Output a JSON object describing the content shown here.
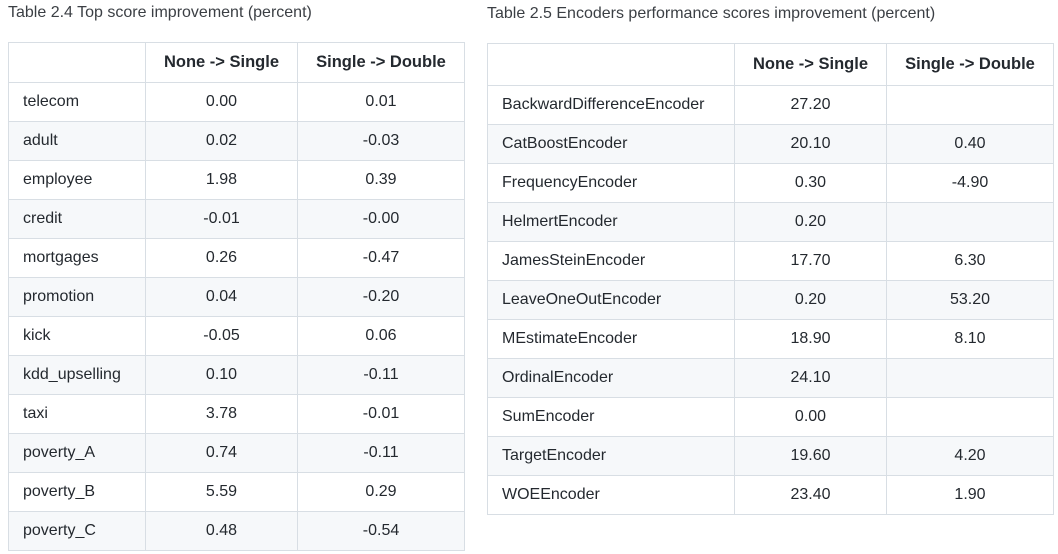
{
  "table1": {
    "caption": "Table 2.4 Top score improvement (percent)",
    "headers": [
      "",
      "None -> Single",
      "Single -> Double"
    ],
    "rows": [
      [
        "telecom",
        "0.00",
        "0.01"
      ],
      [
        "adult",
        "0.02",
        "-0.03"
      ],
      [
        "employee",
        "1.98",
        "0.39"
      ],
      [
        "credit",
        "-0.01",
        "-0.00"
      ],
      [
        "mortgages",
        "0.26",
        "-0.47"
      ],
      [
        "promotion",
        "0.04",
        "-0.20"
      ],
      [
        "kick",
        "-0.05",
        "0.06"
      ],
      [
        "kdd_upselling",
        "0.10",
        "-0.11"
      ],
      [
        "taxi",
        "3.78",
        "-0.01"
      ],
      [
        "poverty_A",
        "0.74",
        "-0.11"
      ],
      [
        "poverty_B",
        "5.59",
        "0.29"
      ],
      [
        "poverty_C",
        "0.48",
        "-0.54"
      ]
    ]
  },
  "table2": {
    "caption": "Table 2.5 Encoders performance scores improvement (percent)",
    "headers": [
      "",
      "None -> Single",
      "Single -> Double"
    ],
    "rows": [
      [
        "BackwardDifferenceEncoder",
        "27.20",
        ""
      ],
      [
        "CatBoostEncoder",
        "20.10",
        "0.40"
      ],
      [
        "FrequencyEncoder",
        "0.30",
        "-4.90"
      ],
      [
        "HelmertEncoder",
        "0.20",
        ""
      ],
      [
        "JamesSteinEncoder",
        "17.70",
        "6.30"
      ],
      [
        "LeaveOneOutEncoder",
        "0.20",
        "53.20"
      ],
      [
        "MEstimateEncoder",
        "18.90",
        "8.10"
      ],
      [
        "OrdinalEncoder",
        "24.10",
        ""
      ],
      [
        "SumEncoder",
        "0.00",
        ""
      ],
      [
        "TargetEncoder",
        "19.60",
        "4.20"
      ],
      [
        "WOEEncoder",
        "23.40",
        "1.90"
      ]
    ]
  }
}
